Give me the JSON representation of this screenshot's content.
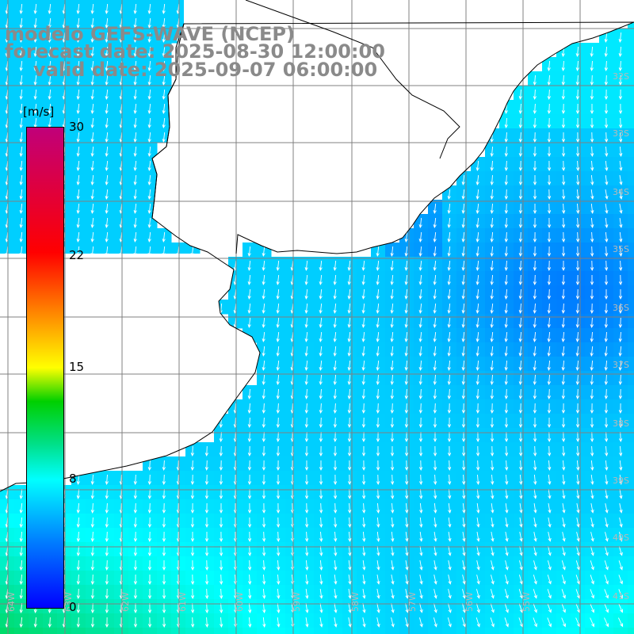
{
  "header": {
    "line1": "modelo GEFS-WAVE (NCEP)",
    "line2": "forecast date: 2025-08-30 12:00:00",
    "line3": "valid date: 2025-09-07 06:00:00"
  },
  "colorbar": {
    "unit": "[m/s]",
    "min": 0,
    "max": 30,
    "tick_labels": [
      "30",
      "22",
      "15",
      "8",
      "0"
    ],
    "tick_values": [
      30,
      22,
      15,
      8,
      0
    ],
    "colors": [
      "#0000ff",
      "#0080ff",
      "#00ffff",
      "#00d000",
      "#ffff00",
      "#ff8000",
      "#ff0000",
      "#c0007a"
    ]
  },
  "map": {
    "land_color": "#ffffff",
    "coastline_color": "#000000",
    "grid_color": "#808080",
    "arrow_color": "#ffffff",
    "lat_labels": [
      "32S",
      "33S",
      "34S",
      "35S",
      "36S",
      "37S",
      "38S",
      "39S",
      "40S",
      "41S"
    ],
    "lon_labels": [
      "64W",
      "63W",
      "62W",
      "61W",
      "60W",
      "59W",
      "58W",
      "57W",
      "56W",
      "55W"
    ]
  }
}
